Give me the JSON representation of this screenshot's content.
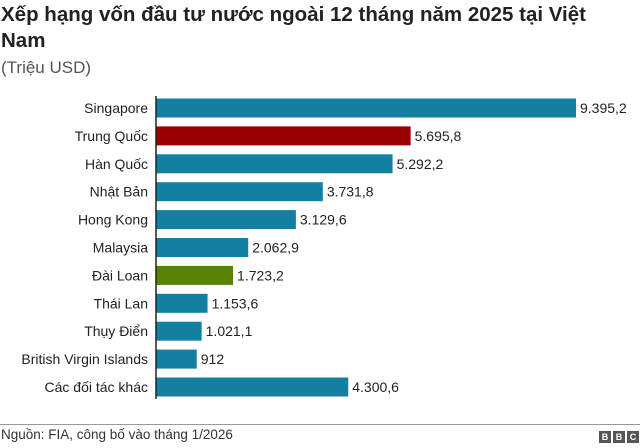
{
  "chart_data": {
    "type": "bar",
    "orientation": "horizontal",
    "title": "Xếp hạng vốn đầu tư nước ngoài 12 tháng năm 2025 tại Việt Nam",
    "subtitle": "(Triệu USD)",
    "categories": [
      "Singapore",
      "Trung Quốc",
      "Hàn Quốc",
      "Nhật Bản",
      "Hong Kong",
      "Malaysia",
      "Đài Loan",
      "Thái Lan",
      "Thụy Điển",
      "British Virgin Islands",
      "Các đối tác khác"
    ],
    "values": [
      9395.2,
      5695.8,
      5292.2,
      3731.8,
      3129.6,
      2062.9,
      1723.2,
      1153.6,
      1021.1,
      912,
      4300.6
    ],
    "data_labels": [
      "9.395,2",
      "5.695,8",
      "5.292,2",
      "3.731,8",
      "3.129,6",
      "2.062,9",
      "1.723,2",
      "1.153,6",
      "1.021,1",
      "912",
      "4.300,6"
    ],
    "colors": [
      "#1380a1",
      "#990000",
      "#1380a1",
      "#1380a1",
      "#1380a1",
      "#1380a1",
      "#588300",
      "#1380a1",
      "#1380a1",
      "#1380a1",
      "#1380a1"
    ],
    "xlim": [
      0,
      9395.2
    ],
    "grid": false,
    "source": "Nguồn: FIA, công bố vào tháng 1/2026"
  },
  "logo": [
    "B",
    "B",
    "C"
  ]
}
